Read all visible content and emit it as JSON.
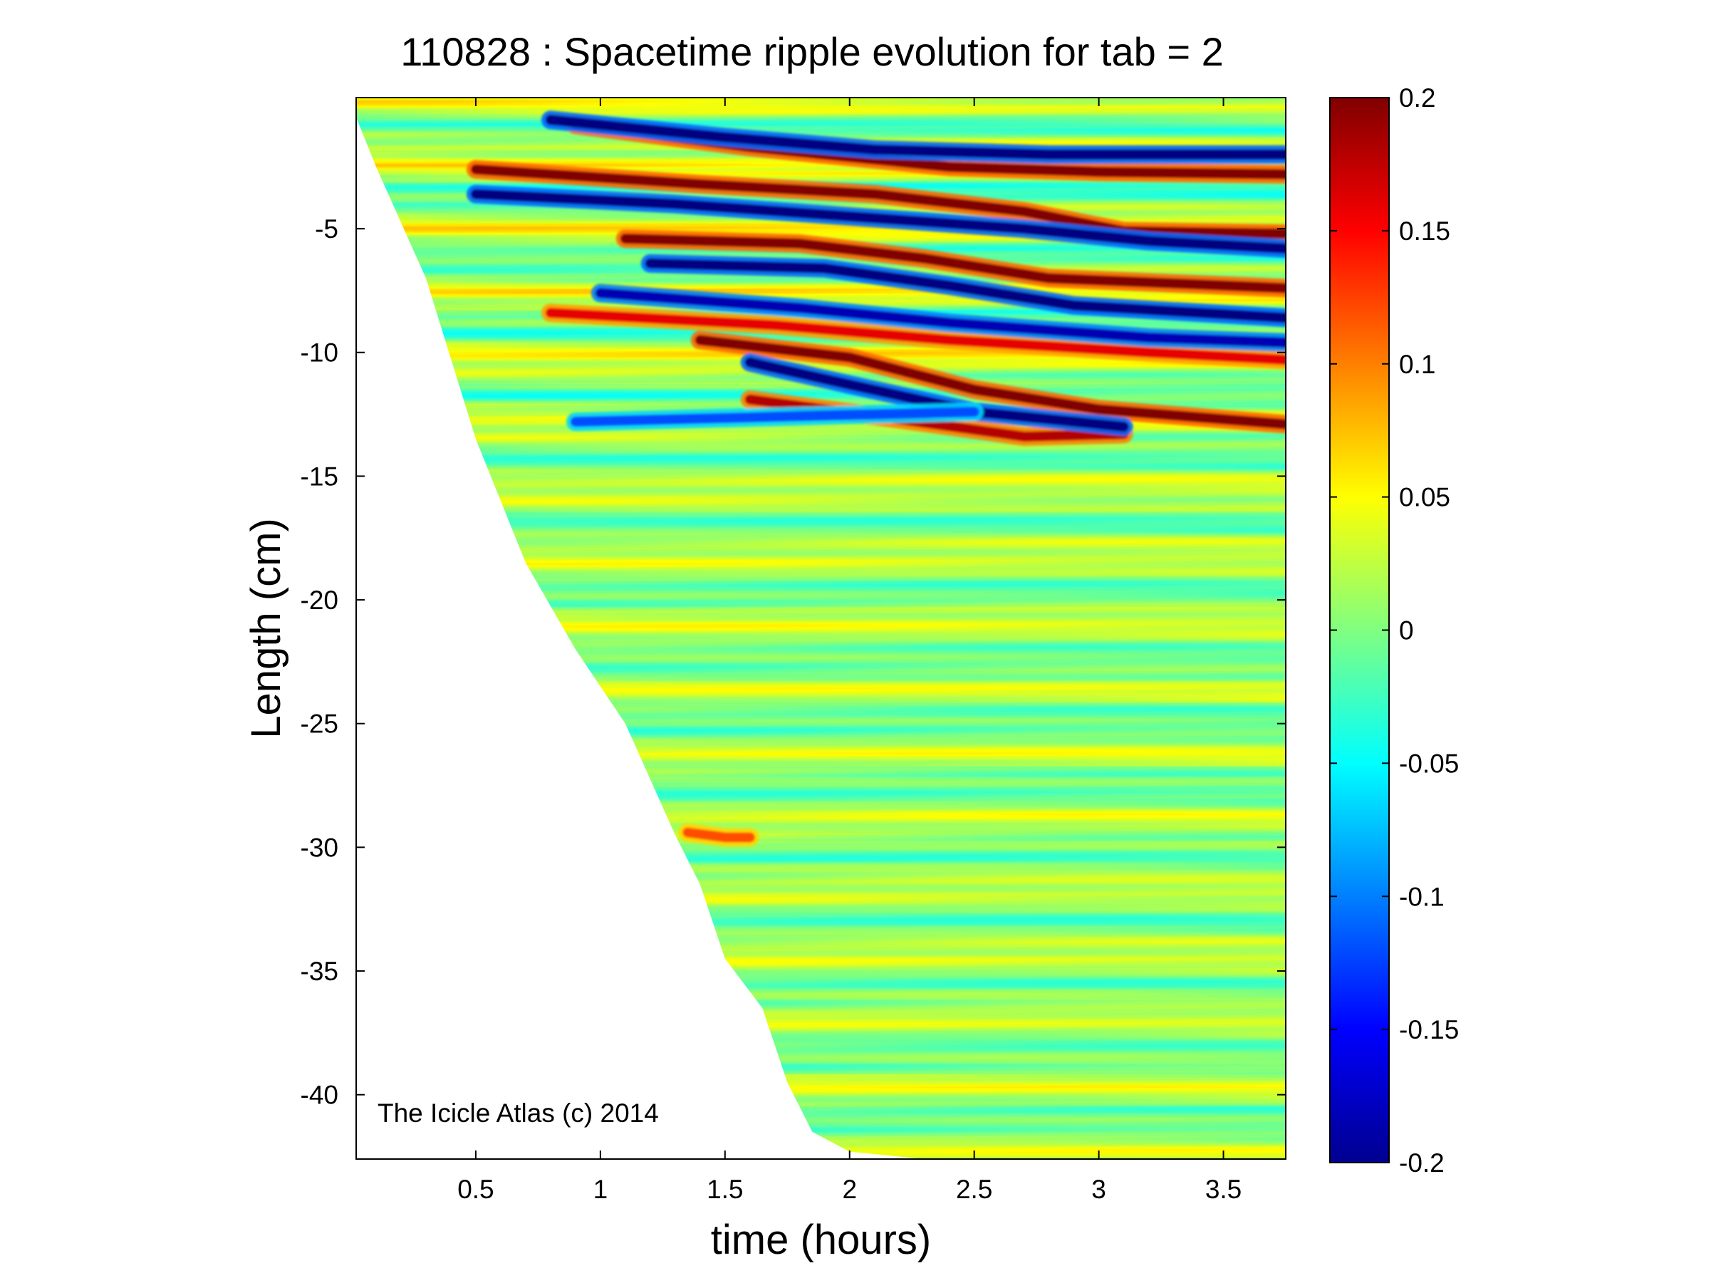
{
  "chart_data": {
    "type": "heatmap",
    "title": "110828 : Spacetime ripple evolution for tab = 2",
    "xlabel": "time (hours)",
    "ylabel": "Length (cm)",
    "xlim": [
      0.02,
      3.75
    ],
    "ylim": [
      -42.6,
      0.3
    ],
    "x_ticks": [
      0.5,
      1,
      1.5,
      2,
      2.5,
      3,
      3.5
    ],
    "x_tick_labels": [
      "0.5",
      "1",
      "1.5",
      "2",
      "2.5",
      "3",
      "3.5"
    ],
    "y_ticks": [
      -5,
      -10,
      -15,
      -20,
      -25,
      -30,
      -35,
      -40
    ],
    "y_tick_labels": [
      "-5",
      "-10",
      "-15",
      "-20",
      "-25",
      "-30",
      "-35",
      "-40"
    ],
    "colorbar": {
      "range": [
        -0.2,
        0.2
      ],
      "ticks": [
        0.2,
        0.15,
        0.1,
        0.05,
        0,
        -0.05,
        -0.1,
        -0.15,
        -0.2
      ],
      "tick_labels": [
        "0.2",
        "0.15",
        "0.1",
        "0.05",
        "0",
        "-0.05",
        "-0.1",
        "-0.15",
        "-0.2"
      ],
      "colormap": "jet"
    },
    "annotation": "The Icicle Atlas (c) 2014",
    "front_boundary": {
      "x": [
        0.02,
        0.1,
        0.3,
        0.5,
        0.7,
        0.9,
        1.1,
        1.3,
        1.4,
        1.5,
        1.65,
        1.75,
        1.85,
        2.0,
        2.3,
        3.75
      ],
      "y": [
        -0.5,
        -2.5,
        -7.0,
        -13.5,
        -18.5,
        -22.0,
        -25.0,
        -29.5,
        -31.5,
        -34.5,
        -36.5,
        -39.5,
        -41.5,
        -42.3,
        -42.6,
        -42.6
      ]
    },
    "ripple_crests": [
      {
        "amp": 0.2,
        "x": [
          0.9,
          1.6,
          2.4,
          3.0,
          3.75
        ],
        "y": [
          -0.8,
          -1.7,
          -2.5,
          -2.7,
          -2.8
        ]
      },
      {
        "amp": 0.2,
        "x": [
          0.5,
          1.4,
          2.1,
          2.7,
          3.1,
          3.75
        ],
        "y": [
          -2.6,
          -3.2,
          -3.6,
          -4.3,
          -5.1,
          -5.2
        ]
      },
      {
        "amp": 0.2,
        "x": [
          1.1,
          1.8,
          2.3,
          2.8,
          3.75
        ],
        "y": [
          -5.4,
          -5.6,
          -6.2,
          -7.0,
          -7.4
        ]
      },
      {
        "amp": 0.2,
        "x": [
          1.4,
          2.0,
          2.5,
          3.0,
          3.75
        ],
        "y": [
          -9.5,
          -10.2,
          -11.5,
          -12.3,
          -12.9
        ]
      },
      {
        "amp": 0.18,
        "x": [
          1.6,
          2.2,
          2.7,
          3.1
        ],
        "y": [
          -11.9,
          -12.7,
          -13.4,
          -13.3
        ]
      },
      {
        "amp": 0.16,
        "x": [
          0.8,
          1.7,
          2.4,
          3.2,
          3.75
        ],
        "y": [
          -8.4,
          -8.9,
          -9.5,
          -10.0,
          -10.3
        ]
      },
      {
        "amp": 0.12,
        "x": [
          1.35,
          1.5,
          1.6
        ],
        "y": [
          -29.4,
          -29.6,
          -29.6
        ]
      }
    ],
    "ripple_troughs": [
      {
        "amp": -0.2,
        "x": [
          0.8,
          1.5,
          2.1,
          2.8,
          3.75
        ],
        "y": [
          -0.6,
          -1.3,
          -1.8,
          -2.0,
          -2.0
        ]
      },
      {
        "amp": -0.2,
        "x": [
          0.5,
          1.3,
          2.0,
          2.7,
          3.2,
          3.75
        ],
        "y": [
          -3.6,
          -4.0,
          -4.5,
          -5.0,
          -5.5,
          -5.8
        ]
      },
      {
        "amp": -0.2,
        "x": [
          1.2,
          1.9,
          2.4,
          2.9,
          3.75
        ],
        "y": [
          -6.4,
          -6.6,
          -7.3,
          -8.1,
          -8.6
        ]
      },
      {
        "amp": -0.2,
        "x": [
          1.6,
          2.0,
          2.5,
          3.1
        ],
        "y": [
          -10.4,
          -11.3,
          -12.4,
          -13.0
        ]
      },
      {
        "amp": -0.18,
        "x": [
          1.0,
          1.8,
          2.4,
          3.2,
          3.75
        ],
        "y": [
          -7.6,
          -8.2,
          -8.8,
          -9.4,
          -9.6
        ]
      },
      {
        "amp": -0.12,
        "x": [
          0.9,
          1.7,
          2.5
        ],
        "y": [
          -12.8,
          -12.6,
          -12.4
        ]
      }
    ]
  }
}
